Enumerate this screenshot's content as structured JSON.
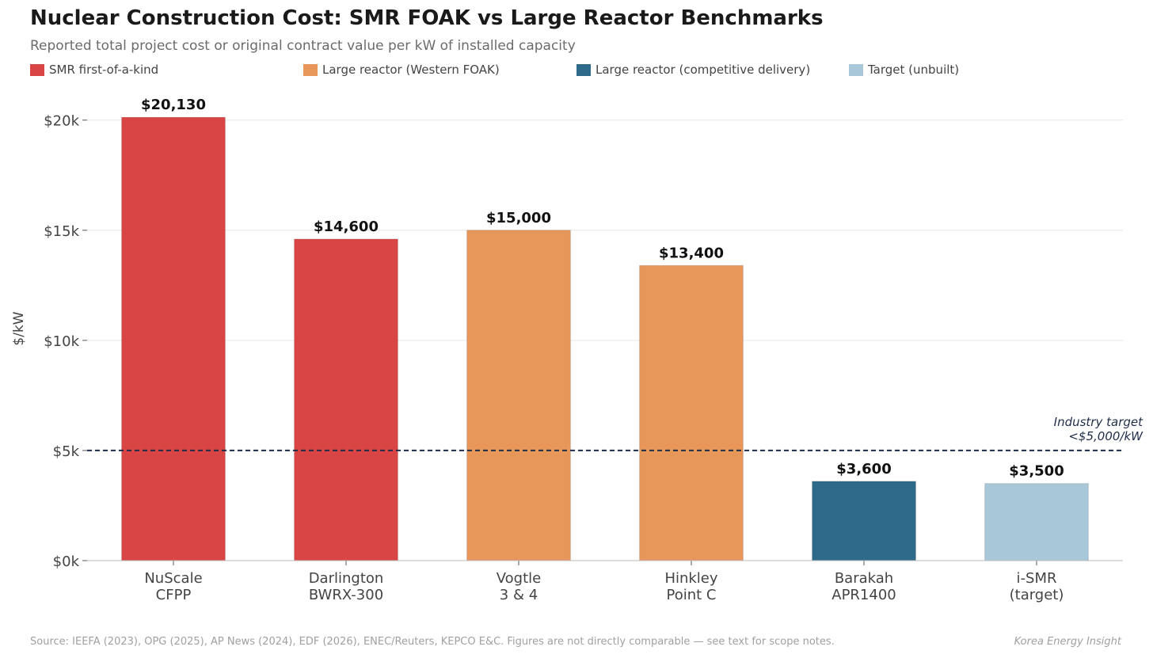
{
  "header": {
    "title": "Nuclear Construction Cost: SMR FOAK vs Large Reactor Benchmarks",
    "subtitle": "Reported total project cost or original contract value per kW of installed capacity"
  },
  "legend": [
    {
      "label": "SMR first-of-a-kind",
      "color": "#d94545"
    },
    {
      "label": "Large reactor (Western FOAK)",
      "color": "#e8975a"
    },
    {
      "label": "Large reactor (competitive delivery)",
      "color": "#2e6a8a"
    },
    {
      "label": "Target (unbuilt)",
      "color": "#a8c7d8"
    }
  ],
  "chart_data": {
    "type": "bar",
    "title": "Nuclear Construction Cost: SMR FOAK vs Large Reactor Benchmarks",
    "ylabel": "$/kW",
    "xlabel": "",
    "ylim": [
      0,
      21500
    ],
    "yticks": [
      0,
      5000,
      10000,
      15000,
      20000
    ],
    "ytick_labels": [
      "$0k",
      "$5k",
      "$10k",
      "$15k",
      "$20k"
    ],
    "grid": true,
    "categories": [
      [
        "NuScale",
        "CFPP"
      ],
      [
        "Darlington",
        "BWRX-300"
      ],
      [
        "Vogtle",
        "3 & 4"
      ],
      [
        "Hinkley",
        "Point C"
      ],
      [
        "Barakah",
        "APR1400"
      ],
      [
        "i-SMR",
        "(target)"
      ]
    ],
    "values": [
      20130,
      14600,
      15000,
      13400,
      3600,
      3500
    ],
    "value_labels": [
      "$20,130",
      "$14,600",
      "$15,000",
      "$13,400",
      "$3,600",
      "$3,500"
    ],
    "bar_colors": [
      "#d94545",
      "#d94545",
      "#e8975a",
      "#e8975a",
      "#2e6a8a",
      "#a8c7d8"
    ],
    "reference_line": {
      "value": 5000,
      "label_lines": [
        "Industry target",
        "<$5,000/kW"
      ],
      "color": "#1f2d4a"
    }
  },
  "footer": {
    "source": "Source: IEEFA (2023), OPG (2025), AP News (2024), EDF (2026), ENEC/Reuters, KEPCO E&C. Figures are not directly comparable — see text for scope notes.",
    "brand": "Korea Energy Insight"
  }
}
